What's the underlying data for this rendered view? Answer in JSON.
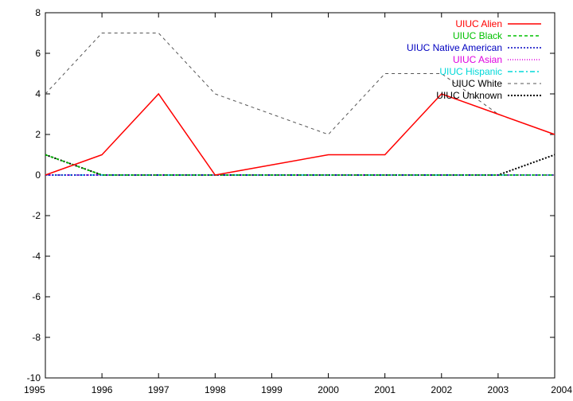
{
  "chart_data": {
    "type": "line",
    "title": "",
    "xlabel": "",
    "ylabel": "",
    "x": [
      1995,
      1996,
      1997,
      1998,
      1999,
      2000,
      2001,
      2002,
      2003,
      2004
    ],
    "xlim": [
      1995,
      2004
    ],
    "ylim": [
      -10,
      8
    ],
    "xticks": [
      "1995",
      "1996",
      "1997",
      "1998",
      "1999",
      "2000",
      "2001",
      "2002",
      "2003",
      "2004"
    ],
    "yticks": [
      "-10",
      "-8",
      "-6",
      "-4",
      "-2",
      "0",
      "2",
      "4",
      "6",
      "8"
    ],
    "grid": false,
    "legend_position": "top-right",
    "series": [
      {
        "name": "UIUC Alien",
        "color": "#ff0000",
        "style": "solid",
        "values": [
          0,
          1,
          4,
          0,
          0.5,
          1,
          1,
          4,
          3,
          2
        ]
      },
      {
        "name": "UIUC Black",
        "color": "#00c000",
        "style": "dashed",
        "values": [
          1,
          0,
          0,
          0,
          0,
          0,
          0,
          0,
          0,
          0
        ]
      },
      {
        "name": "UIUC Native American",
        "color": "#0000c0",
        "style": "dotted",
        "values": [
          0,
          0,
          0,
          0,
          0,
          0,
          0,
          0,
          0,
          0
        ]
      },
      {
        "name": "UIUC Asian",
        "color": "#e000e0",
        "style": "dotted-fine",
        "values": [
          0,
          0,
          0,
          0,
          0,
          0,
          0,
          0,
          0,
          0
        ]
      },
      {
        "name": "UIUC Hispanic",
        "color": "#00d8d8",
        "style": "dashdot",
        "values": [
          0,
          0,
          0,
          0,
          0,
          0,
          0,
          0,
          0,
          0
        ]
      },
      {
        "name": "UIUC White",
        "color": "#000000",
        "style": "dashed-gray",
        "values": [
          4,
          7,
          7,
          4,
          3,
          2,
          5,
          5,
          3,
          2
        ]
      },
      {
        "name": "UIUC Unknown",
        "color": "#000000",
        "style": "dotted-bold",
        "values": [
          1,
          0,
          0,
          0,
          0,
          0,
          0,
          0,
          0,
          1
        ]
      }
    ]
  }
}
